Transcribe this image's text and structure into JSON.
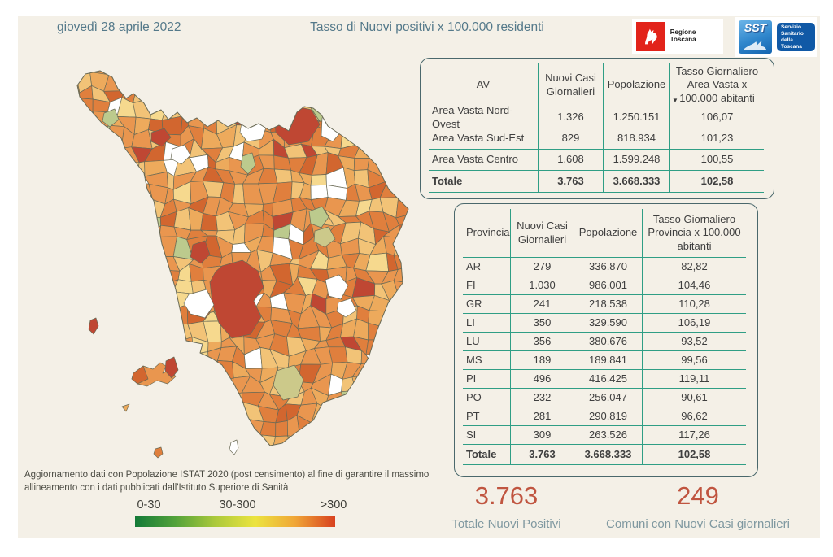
{
  "page": {
    "date": "giovedì 28 aprile 2022",
    "title": "Tasso di Nuovi positivi x 100.000 residenti"
  },
  "logos": {
    "regione_label": "Regione Toscana",
    "sst_abbr": "SST",
    "sst_lines": [
      "Servizio",
      "Sanitario",
      "della",
      "Toscana"
    ]
  },
  "chart_data": [
    {
      "type": "table",
      "name": "area_vasta",
      "columns": [
        "AV",
        "Nuovi Casi Giornalieri",
        "Popolazione",
        "Tasso Giornaliero Area Vasta x 100.000 abitanti"
      ],
      "rows": [
        [
          "Area Vasta Nord-Ovest",
          "1.326",
          "1.250.151",
          "106,07"
        ],
        [
          "Area Vasta Sud-Est",
          "829",
          "818.934",
          "101,23"
        ],
        [
          "Area Vasta Centro",
          "1.608",
          "1.599.248",
          "100,55"
        ]
      ],
      "total": [
        "Totale",
        "3.763",
        "3.668.333",
        "102,58"
      ],
      "sort": {
        "column": "Tasso Giornaliero Area Vasta x 100.000 abitanti",
        "direction": "desc",
        "icon": "▼"
      }
    },
    {
      "type": "table",
      "name": "province",
      "columns": [
        "Provincia",
        "Nuovi Casi Giornalieri",
        "Popolazione",
        "Tasso Giornaliero Provincia x 100.000 abitanti"
      ],
      "rows": [
        [
          "AR",
          "279",
          "336.870",
          "82,82"
        ],
        [
          "FI",
          "1.030",
          "986.001",
          "104,46"
        ],
        [
          "GR",
          "241",
          "218.538",
          "110,28"
        ],
        [
          "LI",
          "350",
          "329.590",
          "106,19"
        ],
        [
          "LU",
          "356",
          "380.676",
          "93,52"
        ],
        [
          "MS",
          "189",
          "189.841",
          "99,56"
        ],
        [
          "PI",
          "496",
          "416.425",
          "119,11"
        ],
        [
          "PO",
          "232",
          "256.047",
          "90,61"
        ],
        [
          "PT",
          "281",
          "290.819",
          "96,62"
        ],
        [
          "SI",
          "309",
          "263.526",
          "117,26"
        ]
      ],
      "total": [
        "Totale",
        "3.763",
        "3.668.333",
        "102,58"
      ]
    },
    {
      "type": "choropleth",
      "region": "Toscana",
      "metric": "Tasso di Nuovi positivi x 100.000 residenti",
      "legend_bins": [
        "0-30",
        "30-300",
        ">300"
      ],
      "kpi_totals": {
        "totale_nuovi_positivi": "3.763",
        "comuni_con_nuovi_casi_giornalieri": "249"
      }
    }
  ],
  "footnote": "Aggiornamento dati con Popolazione ISTAT 2020 (post censimento) al fine di garantire il massimo allineamento con i dati pubblicati dall'Istituto Superiore di Sanità",
  "legend": {
    "labels": [
      "0-30",
      "30-300",
      ">300"
    ],
    "gradient": [
      "#137a38",
      "#52a23a",
      "#abc93b",
      "#ece43f",
      "#f0a637",
      "#d8411f"
    ]
  },
  "kpis": [
    {
      "value": "3.763",
      "label": "Totale Nuovi Positivi"
    },
    {
      "value": "249",
      "label": "Comuni con Nuovi Casi giornalieri"
    }
  ],
  "map": {
    "palette": {
      "orange_mid": "#e9964f",
      "orange_deep": "#e07f3d",
      "orange_dark": "#d2662f",
      "amber_light": "#f2c377",
      "amber_pale": "#edaa5c",
      "cream_light": "#f6d98e",
      "white": "#ffffff",
      "red_dark": "#bf4733",
      "green_light": "#bcca8d",
      "olive_light": "#ccc98a"
    },
    "weights": [
      [
        "orange_mid",
        0.26
      ],
      [
        "orange_deep",
        0.2
      ],
      [
        "amber_light",
        0.16
      ],
      [
        "amber_pale",
        0.14
      ],
      [
        "orange_dark",
        0.1
      ],
      [
        "cream_light",
        0.04
      ],
      [
        "white",
        0.05
      ],
      [
        "red_dark",
        0.025
      ],
      [
        "green_light",
        0.015
      ]
    ]
  },
  "colors": {
    "canvas_bg": "#f4f0e7",
    "heading": "#54798a",
    "table_text": "#3f3f3f",
    "table_border": "#4a686c",
    "table_line": "#2f9e85",
    "kpi_value": "#c05540",
    "kpi_label": "#7f98a0",
    "footnote": "#4c4c44",
    "legend_text": "#3e3e38",
    "map_stroke": "#6a6a55",
    "regione_red": "#e2231a",
    "sst_blue": "#2f86cc",
    "sst_dark_blue": "#1059a6"
  }
}
